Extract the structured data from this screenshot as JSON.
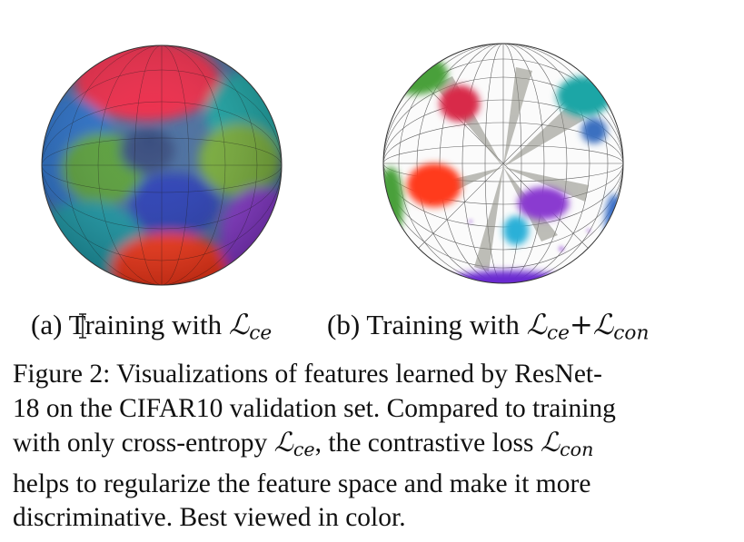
{
  "figure": {
    "subcaption_a": {
      "prefix": "(a) Training with ",
      "loss_symbol": "ℒ",
      "loss_sub": "ce"
    },
    "subcaption_b": {
      "prefix": "(b) Training with ",
      "loss1_symbol": "ℒ",
      "loss1_sub": "ce",
      "plus": "+",
      "loss2_symbol": "ℒ",
      "loss2_sub": "con"
    },
    "caption": {
      "line1": "Figure 2: Visualizations of features learned by ResNet-",
      "line2": "18 on the CIFAR10 validation set. Compared to training",
      "line3_text": "with only cross-entropy ",
      "line3_sym1": "ℒ",
      "line3_sub1": "ce",
      "line3_mid": ", the contrastive loss ",
      "line3_sym2": "ℒ",
      "line3_sub2": "con",
      "line4": "helps to regularize the feature space and make it more",
      "line5": "discriminative. Best viewed in color."
    },
    "colors": {
      "red": "#ef2a4a",
      "teal": "#1aa6a6",
      "green": "#6aaa3a",
      "blue": "#2a4fc8",
      "orange": "#ff4a1e",
      "purple": "#8a3ad0",
      "cyan": "#2ab0d8",
      "crimson": "#d82a4a"
    }
  }
}
